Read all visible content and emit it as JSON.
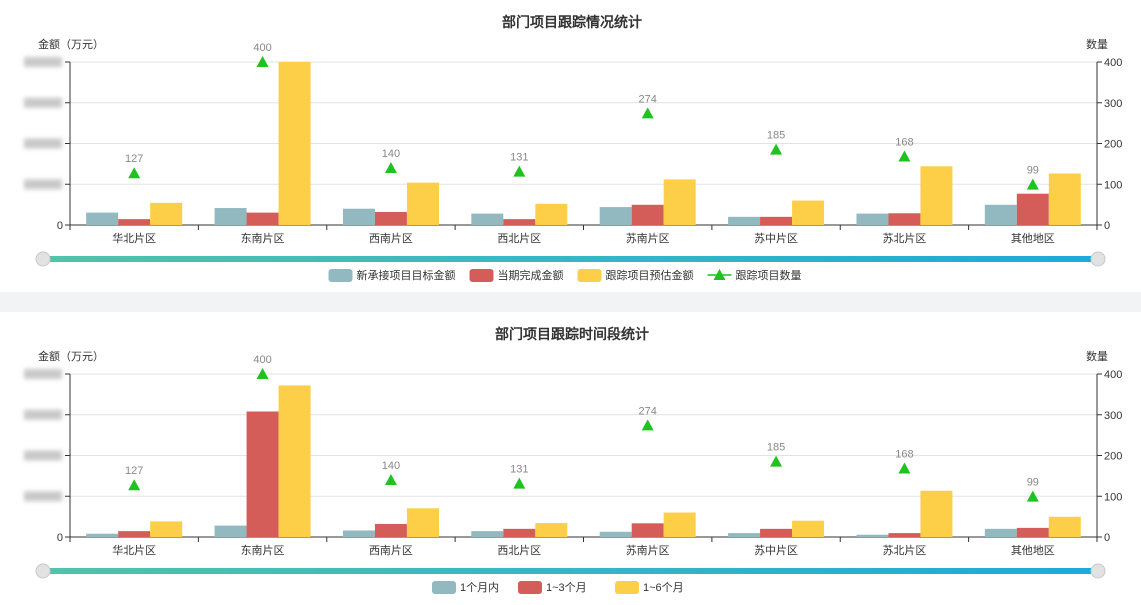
{
  "chart_data": [
    {
      "type": "bar",
      "title": "部门项目跟踪情况统计",
      "ylabel_left": "金额（万元）",
      "ylabel_right": "数量",
      "y_right_ticks": [
        "0",
        "100",
        "200",
        "300",
        "400"
      ],
      "y_right_range": [
        0,
        400
      ],
      "y_left_range": [
        0,
        500
      ],
      "categories": [
        "华北片区",
        "东南片区",
        "西南片区",
        "西北片区",
        "苏南片区",
        "苏中片区",
        "苏北片区",
        "其他地区"
      ],
      "series": [
        {
          "name": "新承接项目目标金额",
          "type": "bar",
          "axis": "left",
          "values": [
            38,
            52,
            50,
            35,
            55,
            25,
            35,
            62
          ]
        },
        {
          "name": "当期完成金额",
          "type": "bar",
          "axis": "left",
          "values": [
            18,
            38,
            40,
            18,
            62,
            25,
            36,
            96
          ]
        },
        {
          "name": "跟踪项目预估金额",
          "type": "bar",
          "axis": "left",
          "values": [
            68,
            500,
            130,
            65,
            140,
            75,
            180,
            158
          ]
        },
        {
          "name": "跟踪项目数量",
          "type": "scatter",
          "axis": "right",
          "values": [
            127,
            400,
            140,
            131,
            274,
            185,
            168,
            99
          ]
        }
      ],
      "grid": true,
      "legend": "bottom",
      "datazoom": true
    },
    {
      "type": "bar",
      "title": "部门项目跟踪时间段统计",
      "ylabel_left": "金额（万元）",
      "ylabel_right": "数量",
      "y_right_ticks": [
        "0",
        "100",
        "200",
        "300",
        "400"
      ],
      "y_right_range": [
        0,
        400
      ],
      "y_left_range": [
        0,
        500
      ],
      "categories": [
        "华北片区",
        "东南片区",
        "西南片区",
        "西北片区",
        "苏南片区",
        "苏中片区",
        "苏北片区",
        "其他地区"
      ],
      "series": [
        {
          "name": "1个月内",
          "type": "bar",
          "axis": "left",
          "values": [
            10,
            35,
            20,
            18,
            16,
            12,
            7,
            25
          ]
        },
        {
          "name": "1~3个月",
          "type": "bar",
          "axis": "left",
          "values": [
            18,
            385,
            40,
            25,
            42,
            25,
            12,
            28
          ]
        },
        {
          "name": "1~6个月",
          "type": "bar",
          "axis": "left",
          "values": [
            48,
            465,
            88,
            43,
            75,
            50,
            142,
            62
          ]
        },
        {
          "name": "",
          "type": "scatter",
          "axis": "right",
          "values": [
            127,
            400,
            140,
            131,
            274,
            185,
            168,
            99
          ]
        }
      ],
      "grid": true,
      "legend": "bottom",
      "datazoom": true
    }
  ],
  "colors": {
    "teal": "#93b9c0",
    "red": "#d45d5a",
    "yellow": "#fdcf48",
    "marker": "#1fc21f",
    "slider_start": "#4fc4a8",
    "slider_end": "#1fa8dd"
  }
}
